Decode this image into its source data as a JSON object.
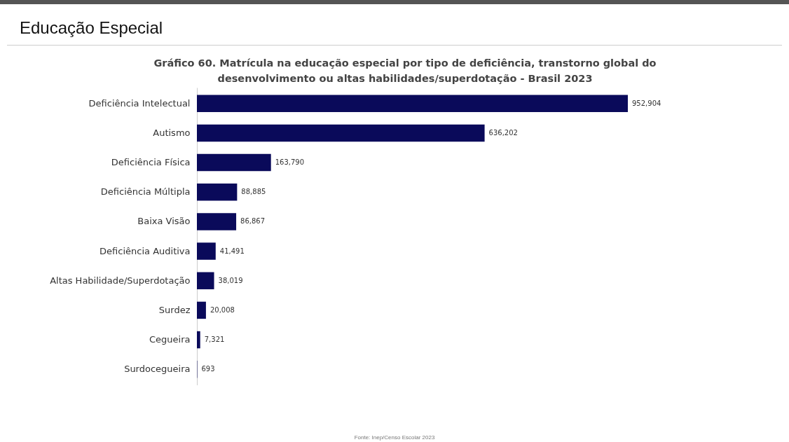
{
  "chart_data": {
    "type": "bar",
    "orientation": "horizontal",
    "title": "Educação Especial",
    "subtitle": "Gráfico 60. Matrícula na educação especial por tipo de deficiência, transtorno global do desenvolvimento ou altas habilidades/superdotação - Brasil 2023",
    "categories": [
      "Deficiência Intelectual",
      "Autismo",
      "Deficiência Física",
      "Deficiência Múltipla",
      "Baixa Visão",
      "Deficiência Auditiva",
      "Altas Habilidade/Superdotação",
      "Surdez",
      "Cegueira",
      "Surdocegueira"
    ],
    "values": [
      952904,
      636202,
      163790,
      88885,
      86867,
      41491,
      38019,
      20008,
      7321,
      693
    ],
    "value_labels": [
      "952,904",
      "636,202",
      "163,790",
      "88,885",
      "86,867",
      "41,491",
      "38,019",
      "20,008",
      "7,321",
      "693"
    ],
    "color": "#0a0a5a",
    "annotations": [
      "Fonte: Inep/Censo Escolar 2023"
    ]
  }
}
